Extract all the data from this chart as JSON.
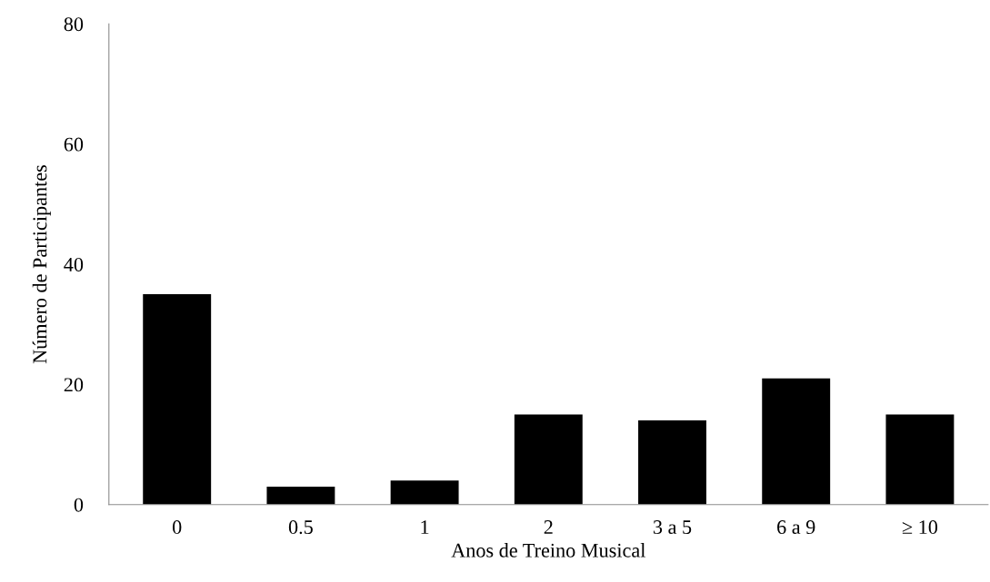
{
  "chart_data": {
    "type": "bar",
    "xlabel": "Anos de Treino Musical",
    "ylabel": "Número de Participantes",
    "categories": [
      "0",
      "0.5",
      "1",
      "2",
      "3 a 5",
      "6 a 9",
      "≥ 10"
    ],
    "values": [
      35,
      3,
      4,
      15,
      14,
      21,
      15
    ],
    "color": "#000000",
    "ylim": [
      0,
      80
    ],
    "yticks": [
      0,
      20,
      40,
      60,
      80
    ],
    "grid": false
  }
}
